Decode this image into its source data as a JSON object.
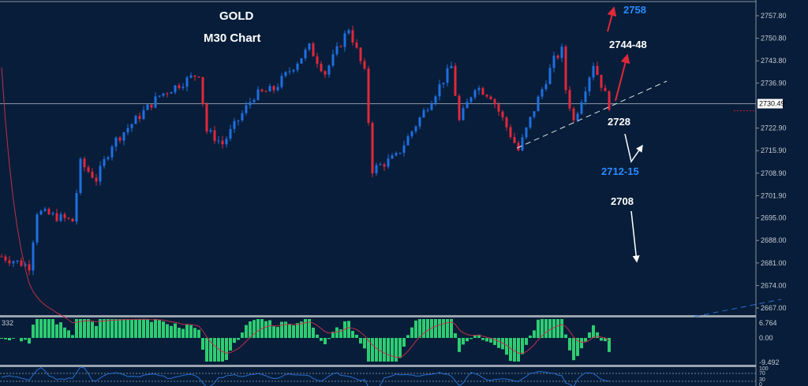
{
  "chart_data": {
    "type": "candlestick",
    "title": "GOLD",
    "subtitle": "M30 Chart",
    "y_ticks": [
      2757.8,
      2750.8,
      2743.8,
      2736.9,
      2722.9,
      2715.9,
      2708.9,
      2701.9,
      2695.0,
      2688.0,
      2681.0,
      2674.0,
      2667.0
    ],
    "ylim": [
      2664,
      2762
    ],
    "current_price": "2730.49",
    "price_path": [
      [
        0,
        2683
      ],
      [
        7,
        2680
      ],
      [
        9,
        2697
      ],
      [
        18,
        2694
      ],
      [
        20,
        2712
      ],
      [
        24,
        2707
      ],
      [
        28,
        2718
      ],
      [
        40,
        2733
      ],
      [
        50,
        2740
      ],
      [
        52,
        2722
      ],
      [
        56,
        2718
      ],
      [
        64,
        2733
      ],
      [
        69,
        2735
      ],
      [
        78,
        2748
      ],
      [
        82,
        2740
      ],
      [
        88,
        2754
      ],
      [
        92,
        2740
      ],
      [
        94,
        2710
      ],
      [
        100,
        2714
      ],
      [
        108,
        2730
      ],
      [
        114,
        2742
      ],
      [
        116,
        2725
      ],
      [
        120,
        2736
      ],
      [
        124,
        2733
      ],
      [
        131,
        2716
      ],
      [
        136,
        2732
      ],
      [
        140,
        2744
      ],
      [
        142,
        2747
      ],
      [
        143,
        2735
      ],
      [
        145,
        2725
      ],
      [
        150,
        2743
      ],
      [
        154,
        2730
      ]
    ],
    "annotations": [
      {
        "text": "2758",
        "color": "#2a8cff"
      },
      {
        "text": "2744-48",
        "color": "#ffffff"
      },
      {
        "text": "2728",
        "color": "#ffffff"
      },
      {
        "text": "2712-15",
        "color": "#2a8cff"
      },
      {
        "text": "2708",
        "color": "#ffffff"
      }
    ],
    "macd": {
      "label": "332",
      "ticks": [
        "6.764",
        "0.00",
        "-9.492"
      ]
    },
    "rsi": {
      "ticks": [
        "100",
        "70",
        "30",
        "0"
      ]
    },
    "colors": {
      "bull": "#1f6fe0",
      "bear": "#e0283a",
      "background": "#071d39",
      "histogram": "#2ecc71"
    }
  }
}
